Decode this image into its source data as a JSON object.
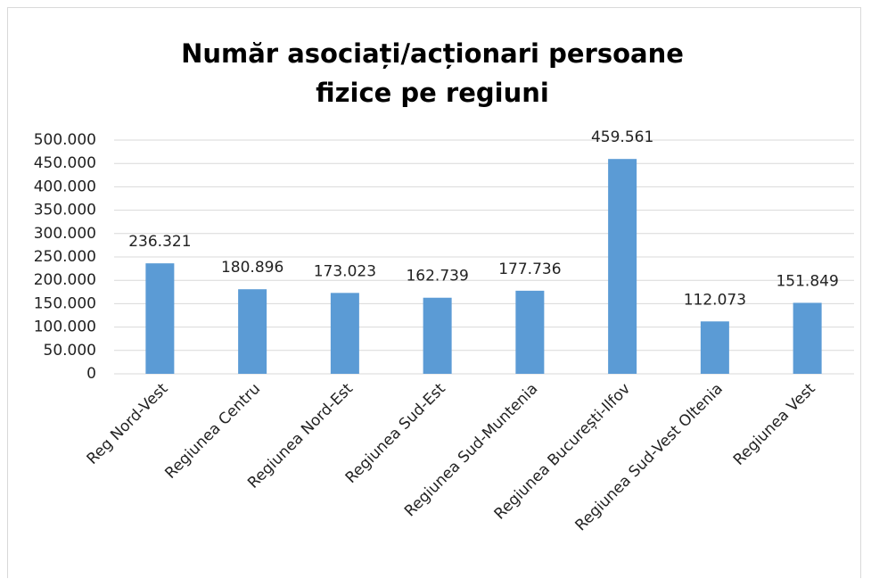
{
  "chart_data": {
    "type": "bar",
    "title": "Număr asociați/acționari persoane fizice pe regiuni",
    "categories": [
      "Reg Nord-Vest",
      "Regiunea Centru",
      "Regiunea Nord-Est",
      "Regiunea Sud-Est",
      "Regiunea Sud-Muntenia",
      "Regiunea București-Ilfov",
      "Regiunea Sud-Vest Oltenia",
      "Regiunea Vest"
    ],
    "values": [
      236321,
      180896,
      173023,
      162739,
      177736,
      459561,
      112073,
      151849
    ],
    "value_labels": [
      "236.321",
      "180.896",
      "173.023",
      "162.739",
      "177.736",
      "459.561",
      "112.073",
      "151.849"
    ],
    "color": "#5b9bd5",
    "ylim": [
      0,
      500000
    ],
    "yticks": [
      0,
      {
        "value": 50000,
        "label": "50.000"
      },
      {
        "value": 100000,
        "label": "100.000"
      },
      {
        "value": 150000,
        "label": "150.000"
      },
      {
        "value": 200000,
        "label": "200.000"
      },
      {
        "value": 250000,
        "label": "250.000"
      },
      {
        "value": 300000,
        "label": "300.000"
      },
      {
        "value": 350000,
        "label": "350.000"
      },
      {
        "value": 400000,
        "label": "400.000"
      },
      {
        "value": 450000,
        "label": "450.000"
      },
      {
        "value": 500000,
        "label": "500.000"
      }
    ],
    "grid": true
  }
}
